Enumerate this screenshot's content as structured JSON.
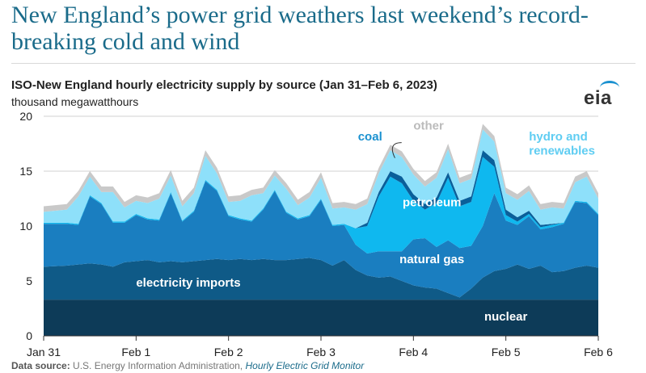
{
  "headline": "New England’s power grid weathers last weekend’s record-breaking cold and wind",
  "logo_text": "eia",
  "source": {
    "label": "Data source:",
    "text": "U.S. Energy Information Administration,",
    "link": "Hourly Electric Grid Monitor"
  },
  "colors": {
    "nuclear": "#0d3b58",
    "electricity imports": "#0f5a87",
    "natural gas": "#1a7ec0",
    "petroleum": "#0fb8ef",
    "coal": "#0a5f9a",
    "hydro and renewables": "#8ee0fa",
    "other": "#c9c9c9"
  },
  "chart_data": {
    "type": "area",
    "stacked": true,
    "title": "ISO-New England hourly electricity supply by source (Jan 31–Feb 6, 2023)",
    "ylabel": "thousand megawatthours",
    "ylim": [
      0,
      20
    ],
    "yticks": [
      0,
      5,
      10,
      15,
      20
    ],
    "xlim": [
      0,
      6
    ],
    "xticks": [
      0,
      1,
      2,
      3,
      4,
      5,
      6
    ],
    "xtick_labels": [
      "Jan 31",
      "Feb 1",
      "Feb 2",
      "Feb 3",
      "Feb 4",
      "Feb 5",
      "Feb 6"
    ],
    "grid": "horizontal",
    "x": [
      0,
      0.25,
      0.375,
      0.5,
      0.625,
      0.75,
      0.875,
      1,
      1.125,
      1.25,
      1.375,
      1.5,
      1.625,
      1.75,
      1.875,
      2,
      2.125,
      2.25,
      2.375,
      2.5,
      2.625,
      2.75,
      2.875,
      3,
      3.125,
      3.25,
      3.375,
      3.5,
      3.625,
      3.75,
      3.875,
      4,
      4.125,
      4.25,
      4.375,
      4.5,
      4.625,
      4.75,
      4.875,
      5,
      5.125,
      5.25,
      5.375,
      5.5,
      5.625,
      5.75,
      5.875,
      6
    ],
    "series": [
      {
        "name": "nuclear",
        "values": [
          3.3,
          3.3,
          3.3,
          3.3,
          3.3,
          3.3,
          3.3,
          3.3,
          3.3,
          3.3,
          3.3,
          3.3,
          3.3,
          3.3,
          3.3,
          3.3,
          3.3,
          3.3,
          3.3,
          3.3,
          3.3,
          3.3,
          3.3,
          3.3,
          3.3,
          3.3,
          3.3,
          3.3,
          3.3,
          3.3,
          3.3,
          3.3,
          3.3,
          3.3,
          3.3,
          3.3,
          3.3,
          3.3,
          3.3,
          3.3,
          3.3,
          3.3,
          3.3,
          3.3,
          3.3,
          3.3,
          3.3,
          3.3
        ]
      },
      {
        "name": "electricity imports",
        "values": [
          3.0,
          3.1,
          3.2,
          3.3,
          3.2,
          3.0,
          3.4,
          3.5,
          3.6,
          3.4,
          3.5,
          3.4,
          3.5,
          3.6,
          3.7,
          3.6,
          3.7,
          3.6,
          3.7,
          3.6,
          3.6,
          3.7,
          3.8,
          3.6,
          3.1,
          3.6,
          2.7,
          2.2,
          2.0,
          2.1,
          1.7,
          1.3,
          1.1,
          1.0,
          0.6,
          0.2,
          1.0,
          2.0,
          2.6,
          2.8,
          3.2,
          2.8,
          3.1,
          2.5,
          2.6,
          2.9,
          3.1,
          2.9
        ]
      },
      {
        "name": "natural gas",
        "values": [
          3.9,
          3.8,
          3.6,
          6.1,
          5.5,
          4.0,
          3.6,
          4.2,
          3.7,
          3.8,
          6.2,
          3.7,
          4.5,
          7.2,
          6.2,
          4.0,
          3.6,
          3.5,
          4.5,
          6.3,
          4.3,
          3.6,
          3.8,
          5.5,
          3.6,
          3.2,
          2.3,
          2.0,
          2.4,
          2.3,
          2.7,
          4.2,
          4.5,
          3.8,
          4.8,
          4.5,
          3.9,
          4.7,
          7.1,
          4.4,
          3.6,
          4.8,
          3.3,
          4.1,
          4.3,
          6.0,
          5.7,
          4.8
        ]
      },
      {
        "name": "petroleum",
        "values": [
          0.1,
          0.1,
          0.1,
          0.1,
          0.1,
          0.1,
          0.1,
          0.1,
          0.1,
          0.1,
          0.1,
          0.1,
          0.1,
          0.1,
          0.1,
          0.1,
          0.1,
          0.1,
          0.1,
          0.1,
          0.1,
          0.1,
          0.1,
          0.1,
          0.1,
          0.1,
          1.5,
          2.5,
          5.0,
          6.8,
          6.2,
          3.5,
          2.6,
          4.0,
          5.7,
          3.8,
          4.0,
          6.3,
          2.4,
          0.5,
          0.3,
          0.2,
          0.2,
          0.2,
          0.1,
          0.1,
          0.1,
          0.1
        ]
      },
      {
        "name": "coal",
        "values": [
          0,
          0,
          0,
          0,
          0,
          0,
          0,
          0,
          0,
          0,
          0,
          0,
          0,
          0,
          0,
          0,
          0,
          0,
          0,
          0,
          0,
          0,
          0,
          0,
          0,
          0,
          0,
          0.3,
          0.4,
          0.5,
          0.6,
          0.6,
          0.5,
          0.5,
          0.5,
          0.5,
          0.5,
          0.6,
          0.6,
          0.5,
          0.4,
          0.3,
          0.2,
          0.1,
          0,
          0,
          0,
          0
        ]
      },
      {
        "name": "hydro and renewables",
        "values": [
          1.0,
          1.2,
          2.5,
          1.7,
          1.0,
          2.7,
          1.3,
          1.2,
          1.4,
          1.9,
          1.5,
          1.3,
          1.6,
          2.2,
          1.5,
          1.2,
          1.6,
          2.3,
          1.4,
          1.3,
          2.1,
          1.2,
          1.6,
          1.9,
          1.5,
          1.5,
          1.7,
          1.7,
          1.7,
          1.9,
          1.8,
          1.8,
          1.6,
          1.8,
          2.1,
          1.6,
          1.6,
          1.9,
          1.7,
          1.5,
          1.6,
          1.8,
          1.4,
          1.5,
          1.3,
          1.7,
          2.3,
          1.4
        ]
      },
      {
        "name": "other",
        "values": [
          0.5,
          0.5,
          0.5,
          0.5,
          0.5,
          0.5,
          0.5,
          0.5,
          0.5,
          0.5,
          0.5,
          0.5,
          0.5,
          0.5,
          0.5,
          0.5,
          0.5,
          0.5,
          0.5,
          0.5,
          0.5,
          0.5,
          0.5,
          0.5,
          0.5,
          0.5,
          0.5,
          0.5,
          0.5,
          0.5,
          0.5,
          0.5,
          0.5,
          0.5,
          0.5,
          0.5,
          0.5,
          0.5,
          0.5,
          0.5,
          0.5,
          0.5,
          0.5,
          0.5,
          0.5,
          0.5,
          0.5,
          0.5
        ]
      }
    ],
    "annotations": [
      {
        "text": "nuclear",
        "x": 5.0,
        "y": 1.4,
        "color": "#ffffff",
        "align": "middle"
      },
      {
        "text": "electricity imports",
        "x": 1.0,
        "y": 4.5,
        "color": "#ffffff",
        "align": "start"
      },
      {
        "text": "natural gas",
        "x": 4.2,
        "y": 6.6,
        "color": "#ffffff",
        "align": "middle"
      },
      {
        "text": "petroleum",
        "x": 4.2,
        "y": 11.8,
        "color": "#ffffff",
        "align": "middle"
      },
      {
        "text": "coal",
        "x": 3.4,
        "y": 17.8,
        "color": "#1a91d0",
        "align": "start"
      },
      {
        "text": "other",
        "x": 4.0,
        "y": 18.8,
        "color": "#bbbbbb",
        "align": "start"
      },
      {
        "text": "hydro and",
        "x": 5.25,
        "y": 17.8,
        "color": "#5fcdf2",
        "align": "start"
      },
      {
        "text": "renewables",
        "x": 5.25,
        "y": 16.5,
        "color": "#5fcdf2",
        "align": "start"
      }
    ]
  }
}
